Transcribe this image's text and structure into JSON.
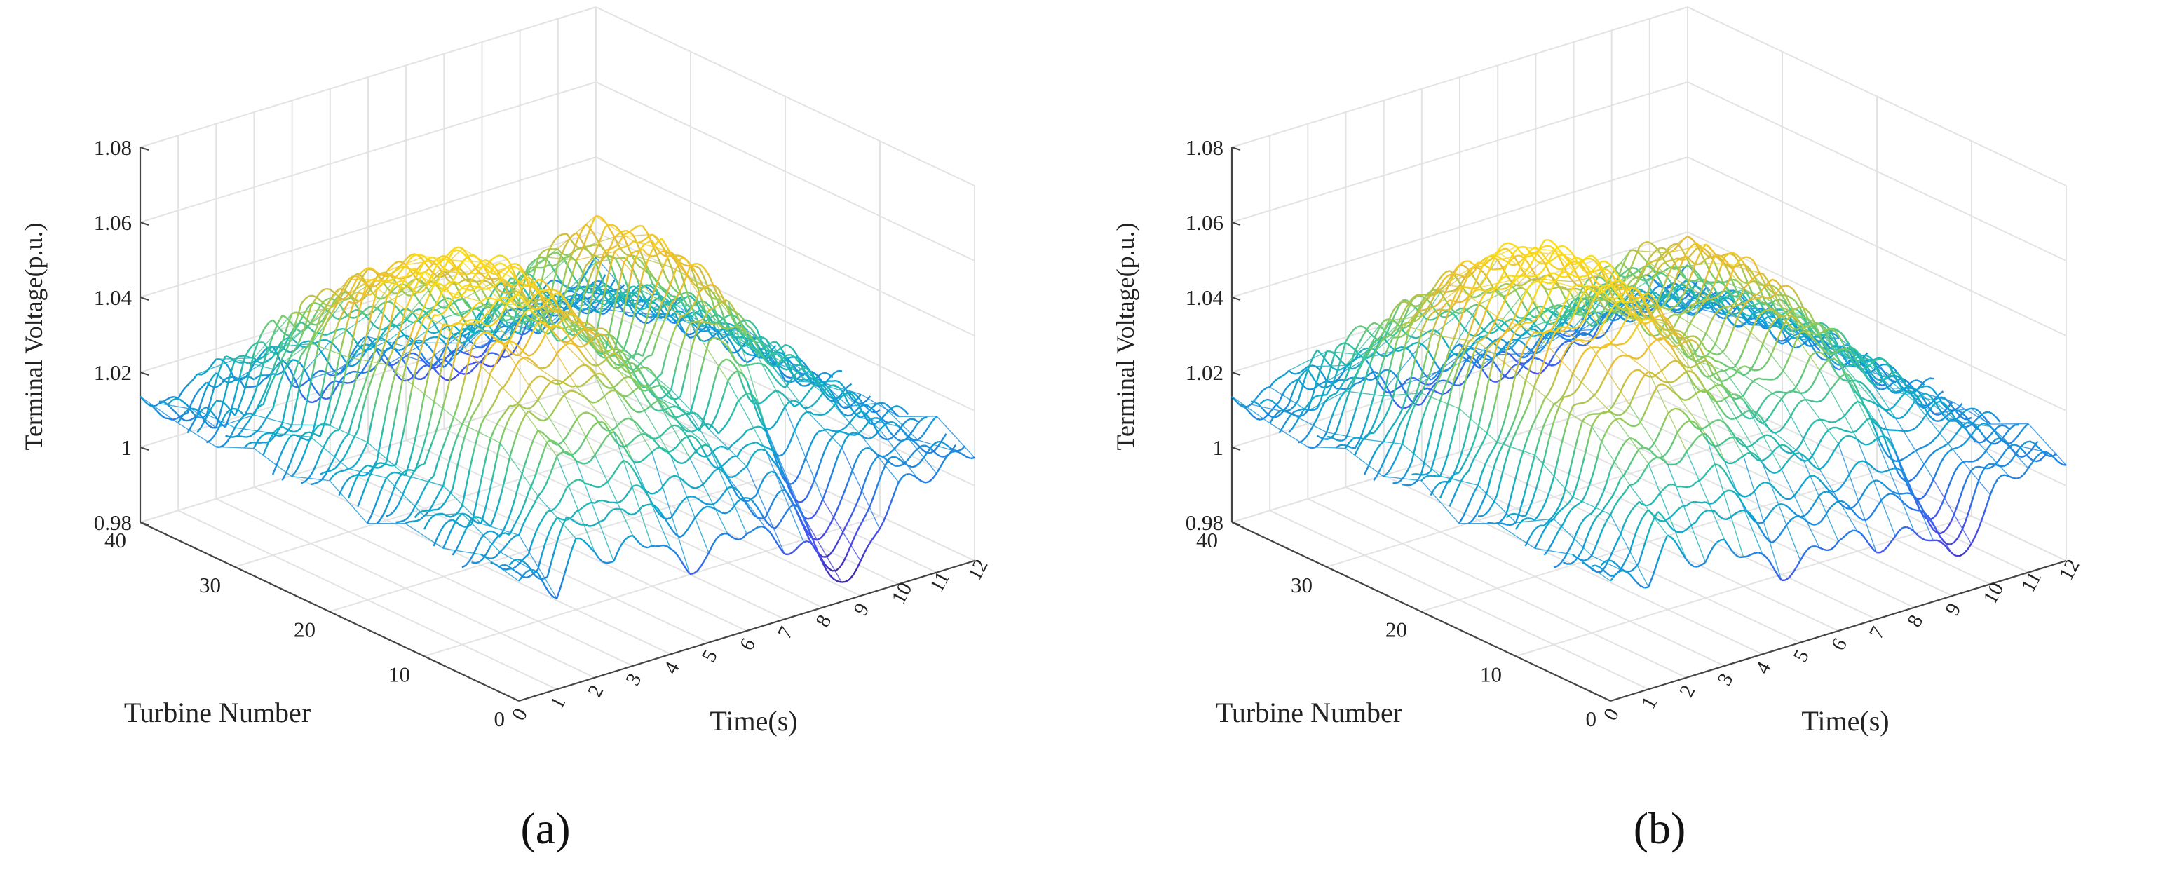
{
  "chart_data": [
    {
      "type": "surface3d",
      "panel": "a",
      "caption": "(a)",
      "zlabel": "Terminal Voltage(p.u.)",
      "ylabel": "Turbine Number",
      "xlabel": "Time(s)",
      "zticks": [
        "0.98",
        "1",
        "1.02",
        "1.04",
        "1.06",
        "1.08"
      ],
      "yticks": [
        "0",
        "10",
        "20",
        "30",
        "40"
      ],
      "xticks": [
        "0",
        "1",
        "2",
        "3",
        "4",
        "5",
        "6",
        "7",
        "8",
        "9",
        "10",
        "11",
        "12"
      ],
      "zlim": [
        0.98,
        1.08
      ],
      "ylim": [
        0,
        40
      ],
      "xlim": [
        0,
        12
      ],
      "profile_time": [
        0,
        0.5,
        1,
        1.5,
        2,
        2.5,
        3,
        3.5,
        4,
        4.5,
        5,
        5.5,
        6,
        6.5,
        7,
        7.5,
        8,
        8.5,
        9,
        9.5,
        10,
        10.5,
        11,
        11.5,
        12
      ],
      "profile_high": [
        1.012,
        1.018,
        1.021,
        1.04,
        1.056,
        1.06,
        1.058,
        1.061,
        1.06,
        1.058,
        1.054,
        1.046,
        1.04,
        1.034,
        1.032,
        1.05,
        1.056,
        1.052,
        1.044,
        1.032,
        1.028,
        1.024,
        1.016,
        1.012,
        1.01
      ],
      "profile_low": [
        1.012,
        1.01,
        1.004,
        1.012,
        1.008,
        1.0,
        1.006,
        1.004,
        0.996,
        0.992,
        0.994,
        1.0,
        1.002,
        0.998,
        0.994,
        0.99,
        0.988,
        0.986,
        0.99,
        0.996,
        1.002,
        1.004,
        1.006,
        1.008,
        1.01
      ],
      "dip": {
        "time": 8.6,
        "turbine_max": 12,
        "value": 0.985
      }
    },
    {
      "type": "surface3d",
      "panel": "b",
      "caption": "(b)",
      "zlabel": "Terminal Voltage(p.u.)",
      "ylabel": "Turbine Number",
      "xlabel": "Time(s)",
      "zticks": [
        "0.98",
        "1",
        "1.02",
        "1.04",
        "1.06",
        "1.08"
      ],
      "yticks": [
        "0",
        "10",
        "20",
        "30",
        "40"
      ],
      "xticks": [
        "0",
        "1",
        "2",
        "3",
        "4",
        "5",
        "6",
        "7",
        "8",
        "9",
        "10",
        "11",
        "12"
      ],
      "zlim": [
        0.98,
        1.08
      ],
      "ylim": [
        0,
        40
      ],
      "xlim": [
        0,
        12
      ],
      "profile_time": [
        0,
        0.5,
        1,
        1.5,
        2,
        2.5,
        3,
        3.5,
        4,
        4.5,
        5,
        5.5,
        6,
        6.5,
        7,
        7.5,
        8,
        8.5,
        9,
        9.5,
        10,
        10.5,
        11,
        11.5,
        12
      ],
      "profile_high": [
        1.012,
        1.016,
        1.03,
        1.046,
        1.054,
        1.058,
        1.062,
        1.064,
        1.062,
        1.058,
        1.052,
        1.044,
        1.038,
        1.04,
        1.046,
        1.052,
        1.05,
        1.044,
        1.036,
        1.03,
        1.026,
        1.02,
        1.014,
        1.01,
        1.008
      ],
      "profile_low": [
        1.012,
        1.01,
        1.006,
        1.012,
        1.006,
        1.0,
        1.004,
        1.0,
        0.994,
        0.99,
        0.992,
        0.996,
        1.0,
        0.996,
        0.992,
        0.99,
        0.992,
        0.994,
        0.998,
        1.002,
        1.004,
        1.006,
        1.008,
        1.008,
        1.008
      ],
      "dip": {
        "time": 9.2,
        "turbine_max": 10,
        "value": 0.99
      }
    }
  ]
}
